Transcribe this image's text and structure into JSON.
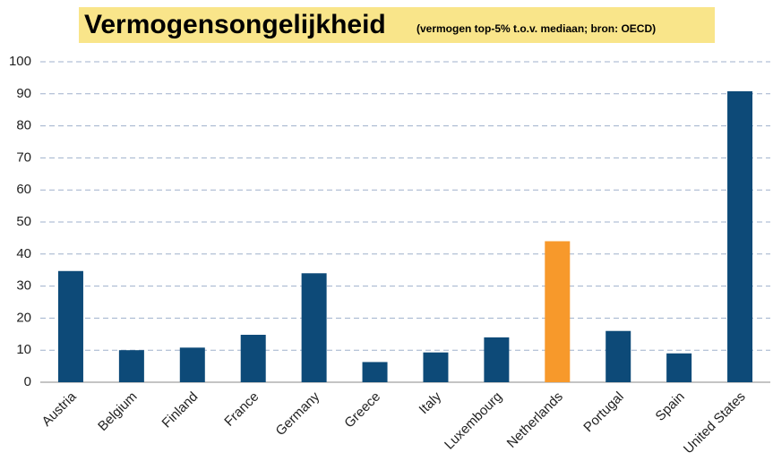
{
  "chart_data": {
    "type": "bar",
    "title": "Vermogensongelijkheid",
    "subtitle": "(vermogen top-5% t.o.v. mediaan;  bron: OECD)",
    "categories": [
      "Austria",
      "Belgium",
      "Finland",
      "France",
      "Germany",
      "Greece",
      "Italy",
      "Luxembourg",
      "Netherlands",
      "Portugal",
      "Spain",
      "United States"
    ],
    "values": [
      34.7,
      10,
      10.8,
      14.8,
      34,
      6.3,
      9.3,
      14,
      44,
      16,
      9,
      90.8
    ],
    "colors": [
      "#0d4a78",
      "#0d4a78",
      "#0d4a78",
      "#0d4a78",
      "#0d4a78",
      "#0d4a78",
      "#0d4a78",
      "#0d4a78",
      "#f7992b",
      "#0d4a78",
      "#0d4a78",
      "#0d4a78"
    ],
    "ylim": [
      0,
      100
    ],
    "yticks": [
      0,
      10,
      20,
      30,
      40,
      50,
      60,
      70,
      80,
      90,
      100
    ],
    "grid": true
  }
}
